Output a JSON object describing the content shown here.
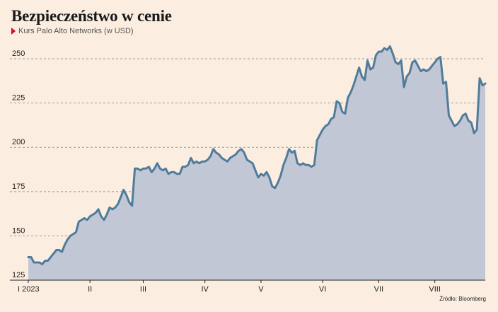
{
  "header": {
    "title": "Bezpieczeństwo w cenie",
    "subtitle": "Kurs Palo Alto Networks (w USD)"
  },
  "footer": {
    "source": "Źródło: Bloomberg"
  },
  "colors": {
    "background": "#fbeee0",
    "line": "#507c9c",
    "area": "#c2c7d6",
    "marker": "#e30613"
  },
  "chart_data": {
    "type": "area",
    "title": "Bezpieczeństwo w cenie",
    "subtitle": "Kurs Palo Alto Networks (w USD)",
    "xlabel": "",
    "ylabel": "",
    "ylim": [
      125,
      260
    ],
    "yticks": [
      125,
      150,
      175,
      200,
      225,
      250
    ],
    "grid": true,
    "x_ticks": [
      "I 2023",
      "II",
      "III",
      "IV",
      "V",
      "VI",
      "VII",
      "VIII"
    ],
    "x_tick_index": [
      0,
      22,
      41,
      63,
      83,
      105,
      125,
      145
    ],
    "series": [
      {
        "values": [
          138,
          138,
          135,
          135,
          135,
          134,
          136,
          136,
          138,
          140,
          142,
          142,
          141,
          145,
          148,
          150,
          151,
          152,
          158,
          159,
          160,
          159,
          161,
          162,
          163,
          165,
          161,
          159,
          162,
          166,
          165,
          166,
          168,
          172,
          176,
          173,
          169,
          167,
          188,
          188,
          187,
          188,
          188,
          189,
          186,
          188,
          191,
          188,
          187,
          188,
          185,
          186,
          186,
          185,
          185,
          189,
          189,
          190,
          194,
          191,
          192,
          191,
          192,
          192,
          193,
          195,
          199,
          197,
          196,
          194,
          193,
          192,
          194,
          195,
          196,
          198,
          199,
          197,
          193,
          192,
          191,
          187,
          183,
          185,
          184,
          186,
          183,
          178,
          177,
          180,
          184,
          190,
          194,
          199,
          197,
          198,
          191,
          190,
          191,
          190,
          190,
          189,
          190,
          204,
          207,
          210,
          212,
          213,
          216,
          217,
          226,
          225,
          220,
          219,
          228,
          231,
          235,
          240,
          245,
          240,
          238,
          249,
          244,
          245,
          252,
          254,
          254,
          256,
          255,
          257,
          253,
          248,
          247,
          249,
          234,
          240,
          242,
          248,
          249,
          246,
          243,
          244,
          243,
          244,
          246,
          248,
          250,
          251,
          236,
          237,
          218,
          215,
          212,
          213,
          215,
          218,
          219,
          215,
          214,
          208,
          210,
          239,
          235,
          236
        ]
      }
    ]
  }
}
